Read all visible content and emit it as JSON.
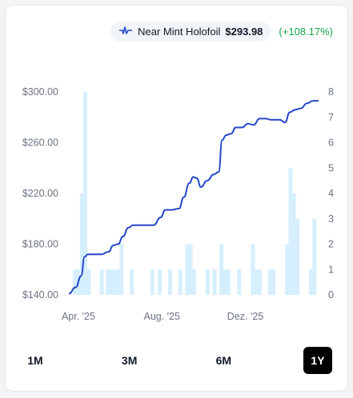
{
  "legend": {
    "series_name": "Near Mint Holofoil",
    "price": "$293.98",
    "change": "(+108.17%)",
    "icon": "pulse-line-icon",
    "line_color": "#2547c9",
    "change_color": "#16a34a"
  },
  "ranges": [
    {
      "label": "1M",
      "active": false
    },
    {
      "label": "3M",
      "active": false
    },
    {
      "label": "6M",
      "active": false
    },
    {
      "label": "1Y",
      "active": true
    }
  ],
  "chart_data": {
    "type": "line",
    "y_left": {
      "ticks": [
        "$300.00",
        "$260.00",
        "$220.00",
        "$180.00",
        "$140.00"
      ],
      "range": [
        140,
        300
      ]
    },
    "y_right": {
      "ticks": [
        "8",
        "7",
        "6",
        "5",
        "4",
        "3",
        "2",
        "1",
        "0"
      ],
      "range": [
        0,
        8
      ]
    },
    "x_ticks": [
      {
        "label": "Apr. '25",
        "date": "2025-04-01"
      },
      {
        "label": "Aug. '25",
        "date": "2025-08-01"
      },
      {
        "label": "Dez. '25",
        "date": "2025-12-01"
      }
    ],
    "x_range": [
      "2025-03-18",
      "2026-03-18"
    ],
    "series": [
      {
        "type": "line",
        "color": "#2547c9",
        "points": [
          [
            "2025-03-18",
            141
          ],
          [
            "2025-03-28",
            146
          ],
          [
            "2025-04-05",
            155
          ],
          [
            "2025-04-10",
            170
          ],
          [
            "2025-04-15",
            172
          ],
          [
            "2025-04-25",
            172
          ],
          [
            "2025-05-05",
            172
          ],
          [
            "2025-05-15",
            174
          ],
          [
            "2025-05-22",
            179
          ],
          [
            "2025-05-29",
            180
          ],
          [
            "2025-06-05",
            186
          ],
          [
            "2025-06-13",
            193
          ],
          [
            "2025-06-20",
            195
          ],
          [
            "2025-06-30",
            195
          ],
          [
            "2025-07-10",
            195
          ],
          [
            "2025-07-20",
            195
          ],
          [
            "2025-07-30",
            201
          ],
          [
            "2025-08-06",
            207
          ],
          [
            "2025-08-15",
            207
          ],
          [
            "2025-08-26",
            208
          ],
          [
            "2025-09-02",
            217
          ],
          [
            "2025-09-10",
            228
          ],
          [
            "2025-09-16",
            233
          ],
          [
            "2025-09-21",
            232
          ],
          [
            "2025-09-27",
            225
          ],
          [
            "2025-10-06",
            230
          ],
          [
            "2025-10-16",
            235
          ],
          [
            "2025-10-23",
            237
          ],
          [
            "2025-10-28",
            262
          ],
          [
            "2025-11-03",
            266
          ],
          [
            "2025-11-10",
            267
          ],
          [
            "2025-11-17",
            272
          ],
          [
            "2025-11-26",
            272
          ],
          [
            "2025-12-05",
            275
          ],
          [
            "2025-12-13",
            274
          ],
          [
            "2025-12-22",
            279
          ],
          [
            "2025-12-30",
            279
          ],
          [
            "2026-01-08",
            278
          ],
          [
            "2026-01-20",
            278
          ],
          [
            "2026-01-28",
            276
          ],
          [
            "2026-02-04",
            284
          ],
          [
            "2026-02-12",
            286
          ],
          [
            "2026-02-20",
            287
          ],
          [
            "2026-03-01",
            291
          ],
          [
            "2026-03-10",
            293
          ],
          [
            "2026-03-18",
            293
          ]
        ]
      },
      {
        "type": "bar",
        "color": "#d6efff",
        "axis": "right",
        "points": [
          [
            "2025-03-27",
            1
          ],
          [
            "2025-04-01",
            1
          ],
          [
            "2025-04-06",
            4
          ],
          [
            "2025-04-11",
            8
          ],
          [
            "2025-04-16",
            1
          ],
          [
            "2025-05-05",
            1
          ],
          [
            "2025-05-14",
            1
          ],
          [
            "2025-05-19",
            1
          ],
          [
            "2025-05-24",
            1
          ],
          [
            "2025-05-29",
            1
          ],
          [
            "2025-06-03",
            2
          ],
          [
            "2025-06-18",
            1
          ],
          [
            "2025-07-18",
            1
          ],
          [
            "2025-07-29",
            1
          ],
          [
            "2025-08-13",
            1
          ],
          [
            "2025-08-28",
            1
          ],
          [
            "2025-09-07",
            2
          ],
          [
            "2025-09-12",
            2
          ],
          [
            "2025-09-17",
            1
          ],
          [
            "2025-10-07",
            1
          ],
          [
            "2025-10-17",
            1
          ],
          [
            "2025-10-27",
            2
          ],
          [
            "2025-11-01",
            1
          ],
          [
            "2025-11-06",
            1
          ],
          [
            "2025-11-22",
            1
          ],
          [
            "2025-12-12",
            2
          ],
          [
            "2025-12-17",
            1
          ],
          [
            "2025-12-22",
            1
          ],
          [
            "2026-01-06",
            1
          ],
          [
            "2026-01-11",
            1
          ],
          [
            "2026-01-31",
            2
          ],
          [
            "2026-02-05",
            5
          ],
          [
            "2026-02-10",
            4
          ],
          [
            "2026-02-15",
            3
          ],
          [
            "2026-03-07",
            1
          ],
          [
            "2026-03-12",
            3
          ]
        ]
      }
    ]
  }
}
